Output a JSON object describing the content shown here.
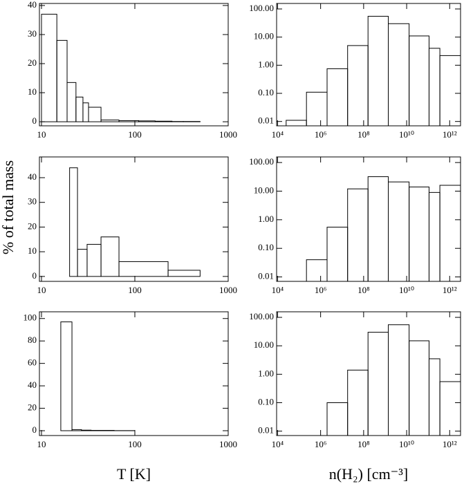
{
  "chart_data": [
    {
      "type": "histogram",
      "xlog": true,
      "ylog": false,
      "bins": [
        10,
        14.6,
        18.8,
        23.4,
        27.8,
        31.9,
        43.4,
        67.6,
        110,
        165,
        250,
        330,
        500
      ],
      "values": [
        37,
        28,
        13.5,
        8.5,
        6.5,
        5,
        0.6,
        0.4,
        0.3,
        0.2,
        0.1,
        0.1
      ],
      "xlim": [
        9.5,
        1000
      ],
      "ylim": [
        -1.4,
        40.7
      ],
      "xticks": [
        10,
        100,
        1000
      ],
      "yticks": [
        0,
        10,
        20,
        30,
        40
      ]
    },
    {
      "type": "histogram",
      "xlog": true,
      "ylog": true,
      "bins": [
        25000,
        220000,
        2000000,
        18000000,
        160000000,
        1400000000,
        13000000000,
        110000000000,
        350000000000,
        3200000000000
      ],
      "values": [
        0.011,
        0.11,
        0.75,
        5,
        55,
        30,
        11,
        4,
        2.2
      ],
      "xlim": [
        9000,
        3200000000000
      ],
      "ylim": [
        0.007,
        157
      ],
      "xticks": [
        {
          "value": 10000,
          "label": "10⁴"
        },
        {
          "value": 1000000,
          "label": "10⁶"
        },
        {
          "value": 100000000,
          "label": "10⁸"
        },
        {
          "value": 10000000000,
          "label": "10¹⁰"
        },
        {
          "value": 1000000000000,
          "label": "10¹²"
        }
      ],
      "yticks": [
        {
          "value": 0.01,
          "label": "0.01"
        },
        {
          "value": 0.1,
          "label": "0.10"
        },
        {
          "value": 1,
          "label": "1.00"
        },
        {
          "value": 10,
          "label": "10.00"
        },
        {
          "value": 100,
          "label": "100.00"
        }
      ]
    },
    {
      "type": "histogram",
      "xlog": true,
      "ylog": false,
      "y_label": "% of total mass",
      "bins": [
        20,
        24.3,
        30.8,
        43.4,
        67.6,
        227,
        500
      ],
      "values": [
        44,
        11,
        13,
        16,
        6,
        2.5
      ],
      "xlim": [
        9.5,
        1000
      ],
      "ylim": [
        -2,
        48.4
      ],
      "xticks": [
        10,
        100,
        1000
      ],
      "yticks": [
        0,
        10,
        20,
        30,
        40
      ]
    },
    {
      "type": "histogram",
      "xlog": true,
      "ylog": true,
      "bins": [
        220000,
        2000000,
        18000000,
        160000000,
        1400000000,
        13000000000,
        110000000000,
        350000000000,
        3200000000000
      ],
      "values": [
        0.04,
        0.55,
        12,
        32,
        21,
        14,
        9,
        16
      ],
      "xlim": [
        9000,
        3200000000000
      ],
      "ylim": [
        0.007,
        157
      ],
      "xticks": [
        {
          "value": 10000,
          "label": "10⁴"
        },
        {
          "value": 1000000,
          "label": "10⁶"
        },
        {
          "value": 100000000,
          "label": "10⁸"
        },
        {
          "value": 10000000000,
          "label": "10¹⁰"
        },
        {
          "value": 1000000000000,
          "label": "10¹²"
        }
      ],
      "yticks": [
        {
          "value": 0.01,
          "label": "0.01"
        },
        {
          "value": 0.1,
          "label": "0.10"
        },
        {
          "value": 1,
          "label": "1.00"
        },
        {
          "value": 10,
          "label": "10.00"
        },
        {
          "value": 100,
          "label": "100.00"
        }
      ]
    },
    {
      "type": "histogram",
      "xlog": true,
      "ylog": false,
      "x_label": "T [K]",
      "bins": [
        16.1,
        21.2,
        26.8,
        34,
        60,
        100
      ],
      "values": [
        97,
        1,
        0.5,
        0.3,
        0.1
      ],
      "xlim": [
        9.5,
        1000
      ],
      "ylim": [
        -4.3,
        106
      ],
      "xticks": [
        10,
        100,
        1000
      ],
      "yticks": [
        0,
        20,
        40,
        60,
        80,
        100
      ]
    },
    {
      "type": "histogram",
      "xlog": true,
      "ylog": true,
      "x_label": "n(H₂) [cm⁻³]",
      "bins": [
        2000000,
        18000000,
        160000000,
        1400000000,
        13000000000,
        110000000000,
        350000000000,
        3200000000000
      ],
      "values": [
        0.1,
        1.4,
        30,
        55,
        15,
        3.5,
        0.55
      ],
      "xlim": [
        9000,
        3200000000000
      ],
      "ylim": [
        0.007,
        157
      ],
      "xticks": [
        {
          "value": 10000,
          "label": "10⁴"
        },
        {
          "value": 1000000,
          "label": "10⁶"
        },
        {
          "value": 100000000,
          "label": "10⁸"
        },
        {
          "value": 10000000000,
          "label": "10¹⁰"
        },
        {
          "value": 1000000000000,
          "label": "10¹²"
        }
      ],
      "yticks": [
        {
          "value": 0.01,
          "label": "0.01"
        },
        {
          "value": 0.1,
          "label": "0.10"
        },
        {
          "value": 1,
          "label": "1.00"
        },
        {
          "value": 10,
          "label": "10.00"
        },
        {
          "value": 100,
          "label": "100.00"
        }
      ]
    }
  ]
}
